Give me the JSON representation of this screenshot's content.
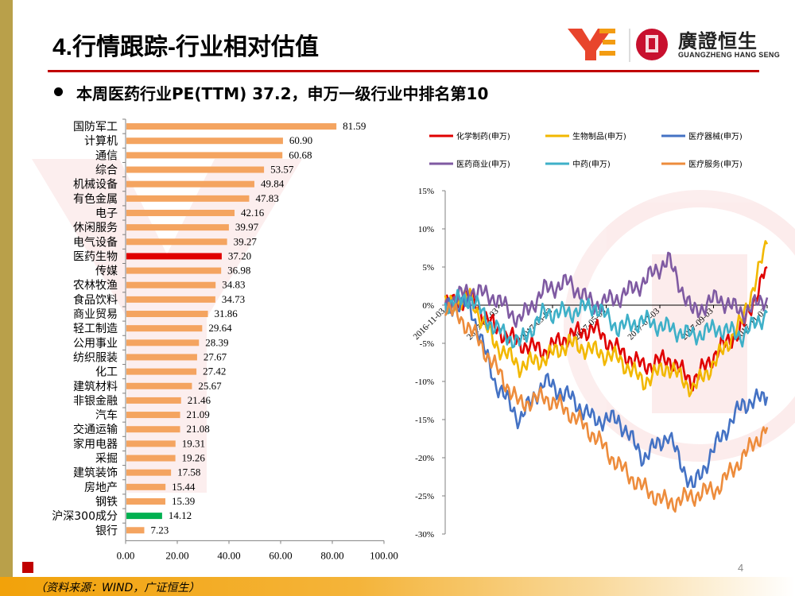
{
  "title": "4.行情跟踪-行业相对估值",
  "logo": {
    "name": "廣證恒生",
    "subtitle": "GUANGZHENG HANG SENG"
  },
  "subtitle": "本周医药行业PE(TTM) 37.2，申万一级行业中排名第10",
  "source": "（资料来源：WIND，广证恒生）",
  "page_number": "4",
  "colors": {
    "bar_default": "#f4a460",
    "bar_highlight_pharma": "#e00000",
    "bar_highlight_index": "#00b050",
    "accent_red": "#c00000",
    "gold": "#b9a04a"
  },
  "chart_data": [
    {
      "type": "bar",
      "orientation": "horizontal",
      "categories": [
        "国防军工",
        "计算机",
        "通信",
        "综合",
        "机械设备",
        "有色金属",
        "电子",
        "休闲服务",
        "电气设备",
        "医药生物",
        "传媒",
        "农林牧渔",
        "食品饮料",
        "商业贸易",
        "轻工制造",
        "公用事业",
        "纺织服装",
        "化工",
        "建筑材料",
        "非银金融",
        "汽车",
        "交通运输",
        "家用电器",
        "采掘",
        "建筑装饰",
        "房地产",
        "钢铁",
        "沪深300成分",
        "银行"
      ],
      "values": [
        81.59,
        60.9,
        60.68,
        53.57,
        49.84,
        47.83,
        42.16,
        39.97,
        39.27,
        37.2,
        36.98,
        34.83,
        34.73,
        31.86,
        29.64,
        28.39,
        27.67,
        27.42,
        25.67,
        21.46,
        21.09,
        21.08,
        19.31,
        19.26,
        17.58,
        15.44,
        15.39,
        14.12,
        7.23
      ],
      "labels": [
        "81.59",
        "60.90",
        "60.68",
        "53.57",
        "49.84",
        "47.83",
        "42.16",
        "39.97",
        "39.27",
        "37.20",
        "36.98",
        "34.83",
        "34.73",
        "31.86",
        "29.64",
        "28.39",
        "27.67",
        "27.42",
        "25.67",
        "21.46",
        "21.09",
        "21.08",
        "19.31",
        "19.26",
        "17.58",
        "15.44",
        "15.39",
        "14.12",
        "7.23"
      ],
      "highlight": {
        "医药生物": "#e00000",
        "沪深300成分": "#00b050"
      },
      "xlim": [
        0,
        100
      ],
      "xticks": [
        "0.00",
        "20.00",
        "40.00",
        "60.00",
        "80.00",
        "100.00"
      ],
      "grid": false
    },
    {
      "type": "line",
      "ylim": [
        -30,
        15
      ],
      "yticks": [
        "15%",
        "10%",
        "5%",
        "0%",
        "-5%",
        "-10%",
        "-15%",
        "-20%",
        "-25%",
        "-30%"
      ],
      "xticks": [
        "2016-11-03",
        "2017-01-03",
        "2017-03-03",
        "2017-05-03",
        "2017-07-03",
        "2017-09-03",
        "2017-11-03"
      ],
      "legend_position": "top",
      "x": [
        0,
        4,
        8,
        12,
        16,
        20,
        24,
        28,
        32,
        36,
        40,
        44,
        48,
        52
      ],
      "series": [
        {
          "name": "化学制药(申万)",
          "color": "#e00000",
          "values": [
            0,
            1,
            -3,
            -5,
            -6,
            -4,
            -3,
            -6,
            -8,
            -7,
            -10,
            -6,
            -3,
            5
          ]
        },
        {
          "name": "生物制品(申万)",
          "color": "#f2b800",
          "values": [
            0,
            1,
            -5,
            -8,
            -7,
            -5,
            -6,
            -7,
            -10,
            -8,
            -11,
            -7,
            -2,
            8
          ]
        },
        {
          "name": "医疗器械(申万)",
          "color": "#4472c4",
          "values": [
            0,
            0,
            -10,
            -15,
            -10,
            -12,
            -15,
            -15,
            -20,
            -17,
            -24,
            -18,
            -13,
            -12
          ]
        },
        {
          "name": "医药商业(申万)",
          "color": "#7f5aa2",
          "values": [
            0,
            2,
            1,
            -2,
            2,
            3,
            0,
            1,
            3,
            6,
            -1,
            1,
            -1,
            1
          ]
        },
        {
          "name": "中药(申万)",
          "color": "#3eb0c8",
          "values": [
            0,
            1,
            -3,
            -5,
            -1,
            -1,
            0,
            -3,
            -2,
            -3,
            -4,
            -3,
            -4,
            -1
          ]
        },
        {
          "name": "医疗服务(申万)",
          "color": "#ed8c3c",
          "values": [
            0,
            -3,
            -8,
            -13,
            -12,
            -14,
            -17,
            -21,
            -24,
            -26,
            -25,
            -24,
            -20,
            -16
          ]
        }
      ]
    }
  ]
}
